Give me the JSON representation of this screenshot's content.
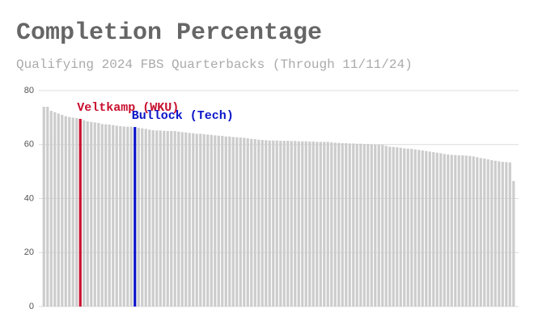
{
  "chart_data": {
    "type": "bar",
    "title": "Completion Percentage",
    "subtitle": "Qualifying 2024 FBS Quarterbacks (Through 11/11/24)",
    "values": [
      74,
      74,
      72.5,
      72,
      71.5,
      71,
      70.5,
      70.2,
      70,
      69.8,
      69.5,
      69,
      68.6,
      68.4,
      68.2,
      68,
      67.6,
      67.5,
      67.4,
      67.2,
      67,
      66.8,
      66.7,
      66.6,
      66.6,
      66.5,
      66.2,
      66,
      65.8,
      65.5,
      65.3,
      65.2,
      65.2,
      65.1,
      65,
      65,
      65,
      64.8,
      64.6,
      64.5,
      64.3,
      64.2,
      64,
      64,
      63.8,
      63.7,
      63.6,
      63.4,
      63.3,
      63.2,
      63,
      63,
      62.8,
      62.7,
      62.6,
      62.5,
      62.3,
      62.1,
      62,
      61.8,
      61.7,
      61.6,
      61.5,
      61.5,
      61.5,
      61.4,
      61.4,
      61.4,
      61.3,
      61.3,
      61.2,
      61.2,
      61.2,
      61.1,
      61.1,
      61,
      61,
      61,
      61,
      60.8,
      60.7,
      60.6,
      60.5,
      60.5,
      60.4,
      60.4,
      60.3,
      60.3,
      60.2,
      60.2,
      60.1,
      60,
      60,
      60,
      59.5,
      59.2,
      59.1,
      59,
      58.8,
      58.6,
      58.5,
      58.4,
      58.2,
      58,
      57.8,
      57.6,
      57.4,
      57.2,
      57,
      56.8,
      56.5,
      56.3,
      56.2,
      56.1,
      56,
      56,
      55.9,
      55.8,
      55.6,
      55.3,
      55,
      54.8,
      54.5,
      54.2,
      54,
      53.8,
      53.6,
      53.5,
      53.4,
      46.5
    ],
    "color": "#cccccc",
    "highlights": [
      {
        "label": "Veltkamp (WKU)",
        "index": 10,
        "color": "#c8102e"
      },
      {
        "label": "Bullock (Tech)",
        "index": 25,
        "color": "#0a14c8"
      }
    ],
    "ylim": [
      0,
      80
    ],
    "yticks": [
      0,
      20,
      40,
      60,
      80
    ],
    "grid": true
  }
}
